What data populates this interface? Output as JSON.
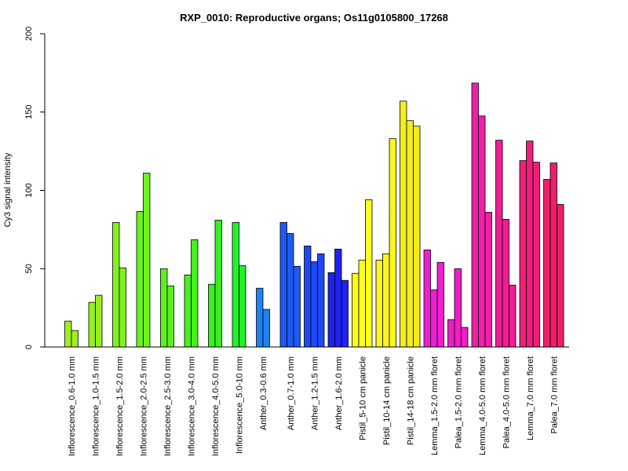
{
  "chart_data": {
    "type": "bar",
    "title": "RXP_0010: Reproductive organs; Os11g0105800_17268",
    "xlabel": "",
    "ylabel": "Cy3 signal intensity",
    "ylim": [
      0,
      200
    ],
    "yticks": [
      "0",
      "50",
      "100",
      "150",
      "200"
    ],
    "grid": false,
    "legend": "none",
    "groups": [
      {
        "label": "Inflorescence_0.6-1.0 mm",
        "color": "#a0ee1e",
        "values": [
          16.5,
          10.5
        ]
      },
      {
        "label": "Inflorescence_1.0-1.5 mm",
        "color": "#97f01d",
        "values": [
          28.5,
          33
        ]
      },
      {
        "label": "Inflorescence_1.5-2.0 mm",
        "color": "#80f21d",
        "values": [
          79.5,
          50.5
        ]
      },
      {
        "label": "Inflorescence_2.0-2.5 mm",
        "color": "#6cf21d",
        "values": [
          86.5,
          111
        ]
      },
      {
        "label": "Inflorescence_2.5-3.0 mm",
        "color": "#5af11d",
        "values": [
          50,
          39
        ]
      },
      {
        "label": "Inflorescence_3.0-4.0 mm",
        "color": "#47f11d",
        "values": [
          46,
          68.5
        ]
      },
      {
        "label": "Inflorescence_4.0-5.0 mm",
        "color": "#36f11d",
        "values": [
          40,
          81
        ]
      },
      {
        "label": "Inflorescence_5.0-10 mm",
        "color": "#22f12b",
        "values": [
          79.5,
          52
        ]
      },
      {
        "label": "Anther_0.3-0.6 mm",
        "color": "#1e82f4",
        "values": [
          37.5,
          24
        ]
      },
      {
        "label": "Anther_0.7-1.0 mm",
        "color": "#1e5af4",
        "values": [
          79.5,
          72.5,
          51.5
        ]
      },
      {
        "label": "Anther_1.2-1.5 mm",
        "color": "#1e48f4",
        "values": [
          64.5,
          54.5,
          59.5
        ]
      },
      {
        "label": "Anther_1.6-2.0 mm",
        "color": "#1e22f2",
        "values": [
          47.5,
          62.5,
          42.5
        ]
      },
      {
        "label": "Pistil_5-10 cm panicle",
        "color": "#ffff1e",
        "values": [
          47,
          55.5,
          94
        ]
      },
      {
        "label": "Pistil_10-14 cm panicle",
        "color": "#fbf51e",
        "values": [
          55.5,
          59.5,
          133
        ]
      },
      {
        "label": "Pistil_14-18 cm panicle",
        "color": "#f4ec1e",
        "values": [
          157,
          144.5,
          141
        ]
      },
      {
        "label": "Lemma_1.5-2.0 mm floret",
        "color": "#f01ed2",
        "values": [
          62,
          36.5,
          54
        ]
      },
      {
        "label": "Palea_1.5-2.0 mm floret",
        "color": "#f01ec6",
        "values": [
          17.5,
          50,
          12.5
        ]
      },
      {
        "label": "Lemma_4.0-5.0 mm floret",
        "color": "#f01ea8",
        "values": [
          168.5,
          147.5,
          86
        ]
      },
      {
        "label": "Palea_4.0-5.0 mm floret",
        "color": "#f01e96",
        "values": [
          132,
          81.5,
          39.5
        ]
      },
      {
        "label": "Lemma_7.0 mm floret",
        "color": "#f01e78",
        "values": [
          119,
          131.5,
          118
        ]
      },
      {
        "label": "Palea_7.0 mm floret",
        "color": "#f01e6a",
        "values": [
          107,
          117.5,
          91
        ]
      }
    ]
  }
}
